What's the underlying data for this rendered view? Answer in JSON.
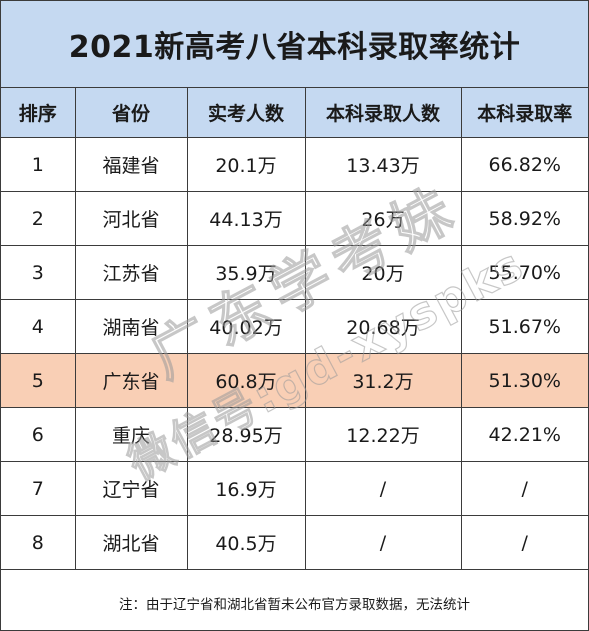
{
  "title": "2021新高考八省本科录取率统计",
  "table": {
    "headers": [
      "排序",
      "省份",
      "实考人数",
      "本科录取人数",
      "本科录取率"
    ],
    "rows": [
      [
        "1",
        "福建省",
        "20.1万",
        "13.43万",
        "66.82%"
      ],
      [
        "2",
        "河北省",
        "44.13万",
        "26万",
        "58.92%"
      ],
      [
        "3",
        "江苏省",
        "35.9万",
        "20万",
        "55.70%"
      ],
      [
        "4",
        "湖南省",
        "40.02万",
        "20.68万",
        "51.67%"
      ],
      [
        "5",
        "广东省",
        "60.8万",
        "31.2万",
        "51.30%"
      ],
      [
        "6",
        "重庆",
        "28.95万",
        "12.22万",
        "42.21%"
      ],
      [
        "7",
        "辽宁省",
        "16.9万",
        "/",
        "/"
      ],
      [
        "8",
        "湖北省",
        "40.5万",
        "/",
        "/"
      ]
    ],
    "highlight_row_index": 4
  },
  "note": "注：由于辽宁省和湖北省暂未公布官方录取数据，无法统计",
  "watermark": {
    "line1": "广东学考妹",
    "line2": "微信号:gd-xyspks"
  },
  "colors": {
    "header_bg": "#c5d9f1",
    "highlight_bg": "#f9cfb5",
    "border": "#3b3b3b",
    "watermark": "#9a9a9a"
  }
}
